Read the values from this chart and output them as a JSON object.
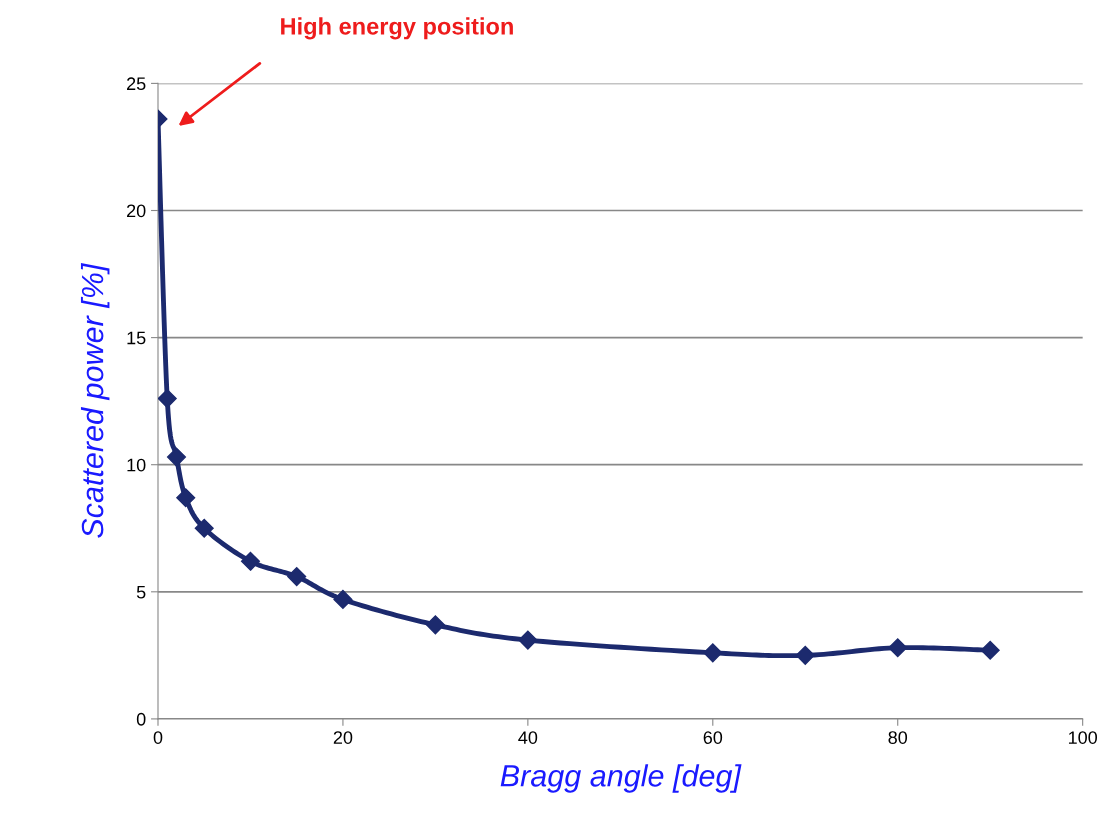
{
  "chart_data": {
    "type": "line",
    "xlabel": "Bragg angle [deg]",
    "ylabel": "Scattered power [%]",
    "x": [
      0,
      1,
      2,
      3,
      5,
      10,
      15,
      20,
      30,
      40,
      60,
      70,
      80,
      90
    ],
    "series": [
      {
        "color": "#1c2a6e",
        "values": [
          23.6,
          12.6,
          10.3,
          8.7,
          7.5,
          6.2,
          5.6,
          4.7,
          3.7,
          3.1,
          2.6,
          2.5,
          2.8,
          2.7
        ]
      }
    ],
    "xlim": [
      0,
      100
    ],
    "xticks": [
      0,
      20,
      40,
      60,
      80,
      100
    ],
    "ylim": [
      0,
      25
    ],
    "yticks": [
      0,
      5,
      10,
      15,
      20,
      25
    ],
    "grid": "y",
    "marker": "diamond",
    "line_style": "solid",
    "annotations": [
      "High energy position"
    ]
  }
}
